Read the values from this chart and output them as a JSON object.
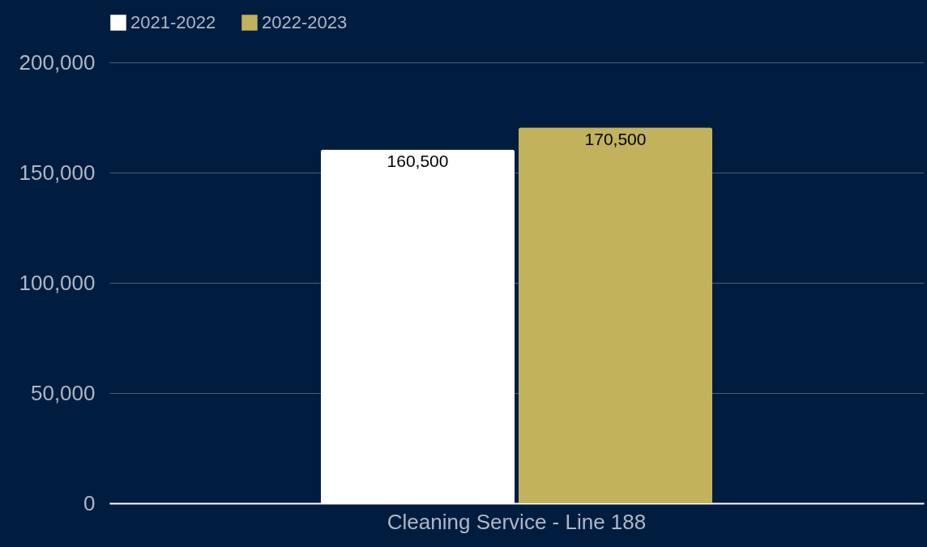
{
  "chart_data": {
    "type": "bar",
    "categories": [
      "Cleaning Service - Line 188"
    ],
    "series": [
      {
        "name": "2021-2022",
        "color": "#ffffff",
        "values": [
          160500
        ],
        "value_labels": [
          "160,500"
        ]
      },
      {
        "name": "2022-2023",
        "color": "#c2b25b",
        "values": [
          170500
        ],
        "value_labels": [
          "170,500"
        ]
      }
    ],
    "ylim": [
      0,
      200000
    ],
    "yticks": [
      {
        "value": 0,
        "label": "0"
      },
      {
        "value": 50000,
        "label": "50,000"
      },
      {
        "value": 100000,
        "label": "100,000"
      },
      {
        "value": 150000,
        "label": "150,000"
      },
      {
        "value": 200000,
        "label": "200,000"
      }
    ],
    "grid": "y",
    "legend": "top"
  }
}
